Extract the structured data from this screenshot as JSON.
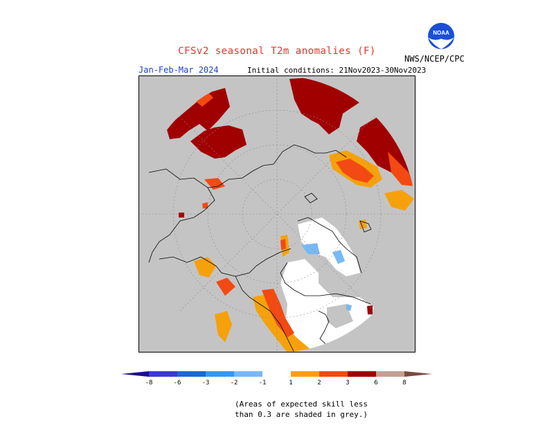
{
  "header": {
    "title": "CFSv2 seasonal T2m anomalies (F)",
    "period": "Jan-Feb-Mar 2024",
    "initial_conditions": "Initial conditions: 21Nov2023-30Nov2023",
    "org": "NWS/NCEP/CPC",
    "logo_text": "NOAA"
  },
  "colorbar": {
    "ticks": [
      "-8",
      "-6",
      "-3",
      "-2",
      "-1",
      "1",
      "2",
      "3",
      "6",
      "8"
    ],
    "colors": [
      "#1d0f8c",
      "#3a3ad4",
      "#1f66d8",
      "#3d94ef",
      "#78b8f4",
      "#ffffff",
      "#f6a10c",
      "#f24a12",
      "#a10000",
      "#c4a090",
      "#7a4a40"
    ]
  },
  "legend_note": {
    "line1": "(Areas of expected skill less",
    "line2": "than 0.3 are shaded in grey.)"
  },
  "map": {
    "projection": "north polar stereographic",
    "background_color": "#c4c4c4",
    "skill_mask_color": "grey"
  }
}
